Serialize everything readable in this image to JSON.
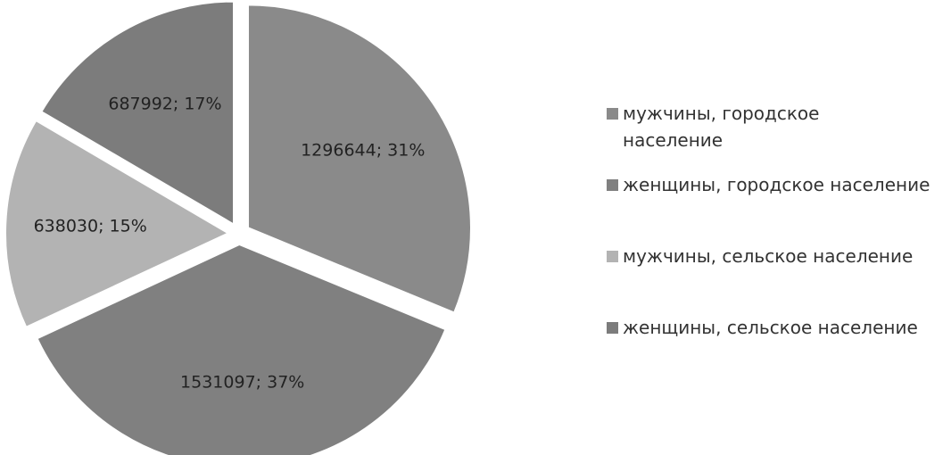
{
  "chart_data": {
    "type": "pie",
    "categories": [
      "мужчины, городское население",
      "женщины, городское население",
      "мужчины, сельское население",
      "женщины, сельское население"
    ],
    "values": [
      1296644,
      1531097,
      638030,
      687992
    ],
    "value_labels": [
      "1296644; 31%",
      "1531097; 37%",
      "638030; 15%",
      "687992; 17%"
    ],
    "colors": [
      "#8a8a8a",
      "#808080",
      "#b3b3b3",
      "#7c7c7c"
    ],
    "legend": "right"
  }
}
